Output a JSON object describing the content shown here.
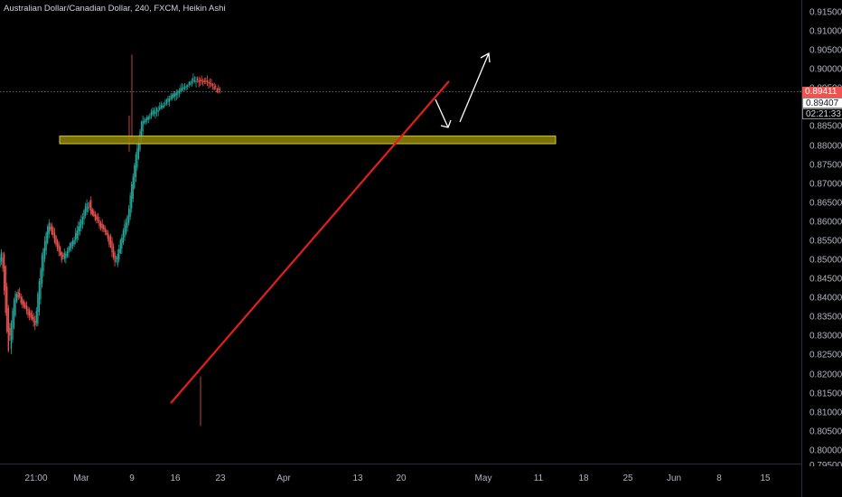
{
  "header": {
    "symbol_title": "Australian Dollar/Canadian Dollar, 240, FXCM, Heikin Ashi"
  },
  "price_axis": {
    "ticks": [
      "0.91500",
      "0.91000",
      "0.90500",
      "0.90000",
      "0.89500",
      "0.89000",
      "0.88500",
      "0.88000",
      "0.87500",
      "0.87000",
      "0.86500",
      "0.86000",
      "0.85500",
      "0.85000",
      "0.84500",
      "0.84000",
      "0.83500",
      "0.83000",
      "0.82500",
      "0.82000",
      "0.81500",
      "0.81000",
      "0.80500",
      "0.80000"
    ],
    "bottom_cut_label": "0.79500",
    "last_price": "0.89411",
    "ref_price": "0.89407",
    "countdown": "02:21:33"
  },
  "time_axis": {
    "ticks": [
      "21:00",
      "Mar",
      "9",
      "16",
      "23",
      "Apr",
      "13",
      "20",
      "May",
      "11",
      "18",
      "25",
      "Jun",
      "8",
      "15"
    ]
  },
  "colors": {
    "bull": "#26a69a",
    "bear": "#ef5350",
    "trendline": "#e31e1e",
    "zone_fill": "#8a7d0a",
    "zone_border": "#d6c832",
    "arrow": "#ffffff",
    "price_line": "#9598a1"
  },
  "chart_data": {
    "type": "candlestick",
    "style": "Heikin Ashi",
    "timeframe": "240",
    "source": "FXCM",
    "y_range": [
      0.797,
      0.917
    ],
    "path_points": [
      {
        "x": "Feb-19",
        "price": 0.8875
      },
      {
        "x": "Feb-21",
        "price": 0.8855
      },
      {
        "x": "Feb-24",
        "price": 0.877
      },
      {
        "x": "Feb-26",
        "price": 0.876
      },
      {
        "x": "Feb-28",
        "price": 0.8805
      },
      {
        "x": "Mar-02",
        "price": 0.872
      },
      {
        "x": "Mar-04",
        "price": 0.88
      },
      {
        "x": "Mar-06",
        "price": 0.888
      },
      {
        "x": "Mar-09",
        "price": 0.903
      },
      {
        "x": "Mar-10",
        "price": 0.8945
      },
      {
        "x": "Mar-12",
        "price": 0.89
      },
      {
        "x": "Mar-13",
        "price": 0.878
      },
      {
        "x": "Mar-16",
        "price": 0.855
      },
      {
        "x": "Mar-17",
        "price": 0.847
      },
      {
        "x": "Mar-18",
        "price": 0.852
      },
      {
        "x": "Mar-19",
        "price": 0.826
      },
      {
        "x": "Mar-20",
        "price": 0.842
      },
      {
        "x": "Mar-23",
        "price": 0.833
      },
      {
        "x": "Mar-24",
        "price": 0.85
      },
      {
        "x": "Mar-25",
        "price": 0.86
      },
      {
        "x": "Mar-27",
        "price": 0.85
      },
      {
        "x": "Mar-29",
        "price": 0.856
      },
      {
        "x": "Mar-31",
        "price": 0.866
      },
      {
        "x": "Apr-01",
        "price": 0.876
      },
      {
        "x": "Apr-02",
        "price": 0.864
      },
      {
        "x": "Apr-05",
        "price": 0.856
      },
      {
        "x": "Apr-06",
        "price": 0.849
      },
      {
        "x": "Apr-08",
        "price": 0.862
      },
      {
        "x": "Apr-09",
        "price": 0.875
      },
      {
        "x": "Apr-10",
        "price": 0.886
      },
      {
        "x": "Apr-12",
        "price": 0.889
      },
      {
        "x": "Apr-14",
        "price": 0.892
      },
      {
        "x": "Apr-16",
        "price": 0.895
      },
      {
        "x": "Apr-18",
        "price": 0.8975
      },
      {
        "x": "Apr-20",
        "price": 0.8965
      },
      {
        "x": "Apr-22",
        "price": 0.894
      }
    ],
    "drawings": {
      "support_zone": {
        "price_low": 0.8806,
        "price_high": 0.8826
      },
      "trendline": {
        "from": {
          "price": 0.8125
        },
        "to": {
          "price": 0.897
        }
      },
      "up_arrow": "white arrow pointing up-right",
      "down_arrow": "white arrow pointing down-right"
    }
  }
}
